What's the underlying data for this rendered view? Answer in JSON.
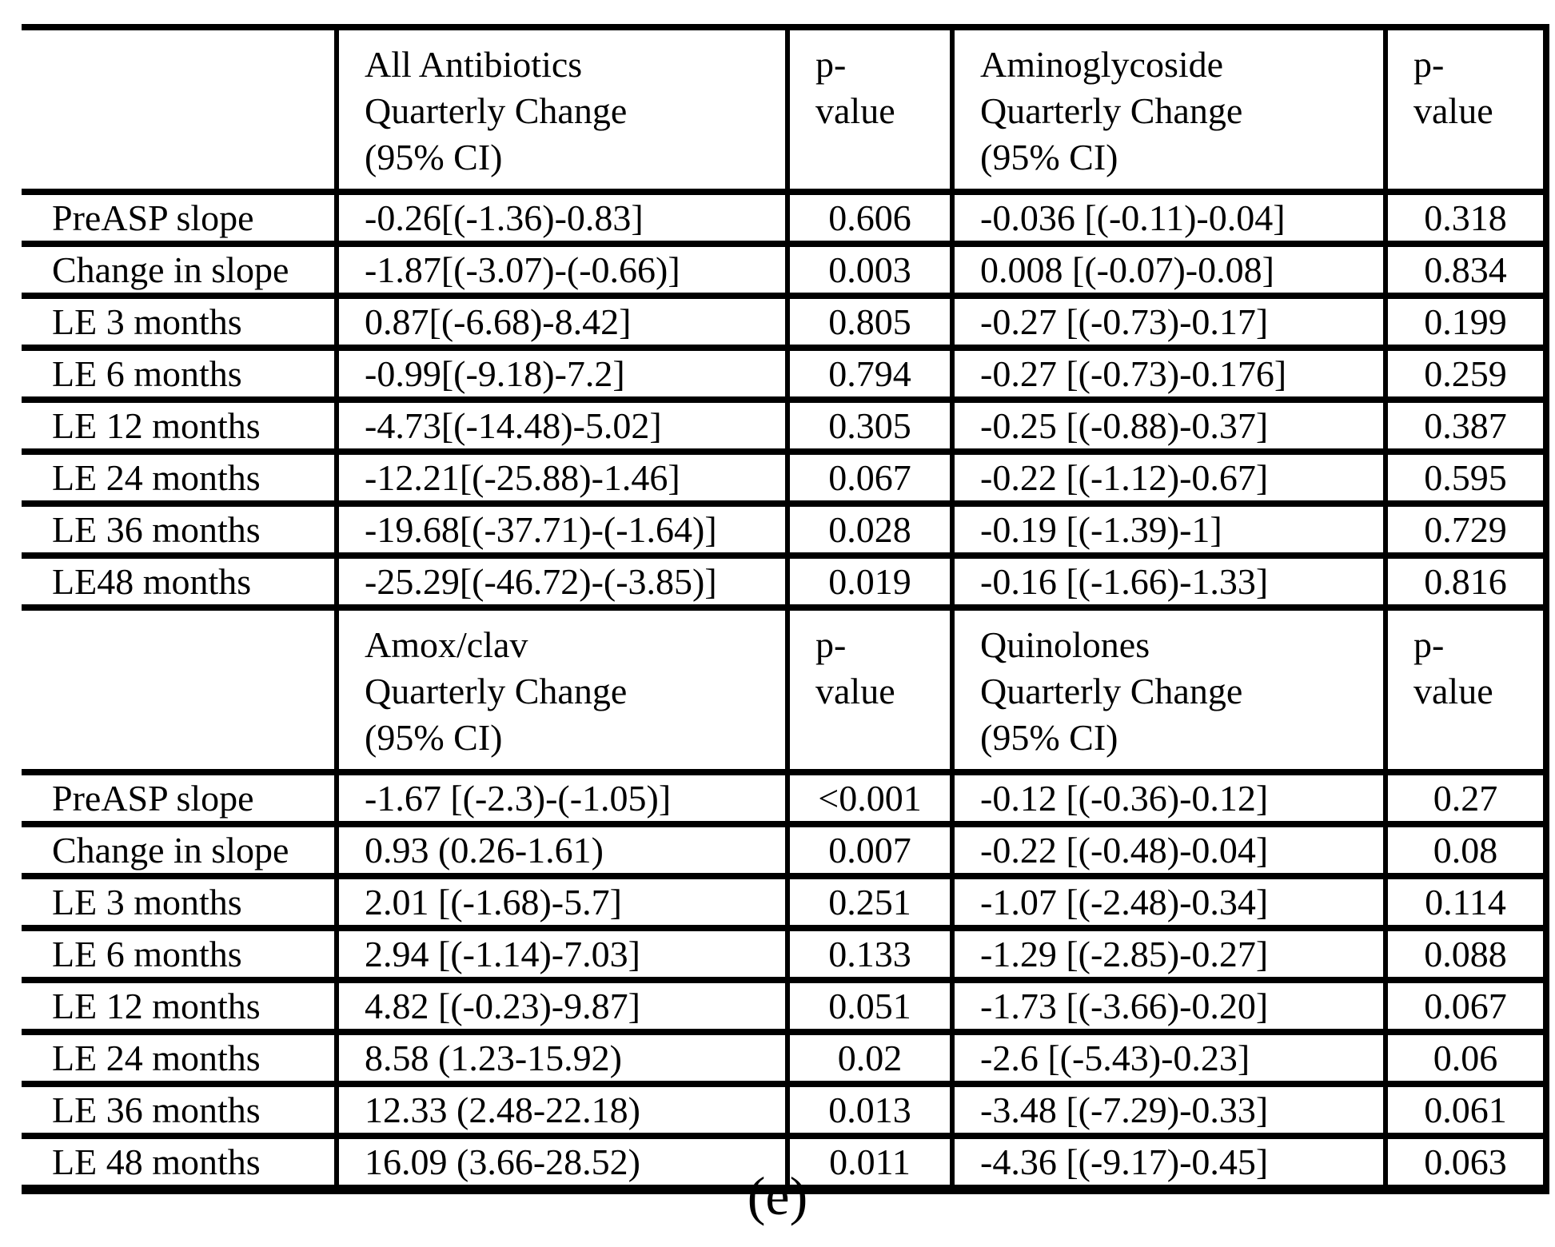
{
  "caption": "(e)",
  "colors": {
    "background": "#ffffff",
    "border": "#000000",
    "text": "#000000"
  },
  "table": {
    "sections": [
      {
        "headers": {
          "label": "",
          "col2": [
            "All Antibiotics",
            "Quarterly Change",
            "(95% CI)"
          ],
          "col3": [
            "p-",
            "value"
          ],
          "col4": [
            "Aminoglycoside",
            "Quarterly Change",
            "(95% CI)"
          ],
          "col5": [
            "p-",
            "value"
          ]
        },
        "rows": [
          [
            "PreASP slope",
            "-0.26[(-1.36)-0.83]",
            "0.606",
            "-0.036 [(-0.11)-0.04]",
            "0.318"
          ],
          [
            "Change in slope",
            "-1.87[(-3.07)-(-0.66)]",
            "0.003",
            "0.008 [(-0.07)-0.08]",
            "0.834"
          ],
          [
            "LE 3 months",
            "0.87[(-6.68)-8.42]",
            "0.805",
            "-0.27 [(-0.73)-0.17]",
            "0.199"
          ],
          [
            "LE 6 months",
            "-0.99[(-9.18)-7.2]",
            "0.794",
            "-0.27 [(-0.73)-0.176]",
            "0.259"
          ],
          [
            "LE 12 months",
            "-4.73[(-14.48)-5.02]",
            "0.305",
            "-0.25 [(-0.88)-0.37]",
            "0.387"
          ],
          [
            "LE 24 months",
            "-12.21[(-25.88)-1.46]",
            "0.067",
            "-0.22 [(-1.12)-0.67]",
            "0.595"
          ],
          [
            "LE 36 months",
            "-19.68[(-37.71)-(-1.64)]",
            "0.028",
            "-0.19 [(-1.39)-1]",
            "0.729"
          ],
          [
            "LE48 months",
            "-25.29[(-46.72)-(-3.85)]",
            "0.019",
            "-0.16 [(-1.66)-1.33]",
            "0.816"
          ]
        ]
      },
      {
        "headers": {
          "label": "",
          "col2": [
            "Amox/clav",
            "Quarterly Change",
            "(95% CI)"
          ],
          "col3": [
            "p-",
            "value"
          ],
          "col4": [
            "Quinolones",
            "Quarterly Change",
            "(95% CI)"
          ],
          "col5": [
            "p-",
            "value"
          ]
        },
        "rows": [
          [
            "PreASP slope",
            "-1.67 [(-2.3)-(-1.05)]",
            "<0.001",
            "-0.12 [(-0.36)-0.12]",
            "0.27"
          ],
          [
            "Change in slope",
            "0.93 (0.26-1.61)",
            "0.007",
            "-0.22 [(-0.48)-0.04]",
            "0.08"
          ],
          [
            "LE 3 months",
            "2.01 [(-1.68)-5.7]",
            "0.251",
            "-1.07 [(-2.48)-0.34]",
            "0.114"
          ],
          [
            "LE 6 months",
            "2.94 [(-1.14)-7.03]",
            "0.133",
            "-1.29 [(-2.85)-0.27]",
            "0.088"
          ],
          [
            "LE 12 months",
            "4.82 [(-0.23)-9.87]",
            "0.051",
            "-1.73 [(-3.66)-0.20]",
            "0.067"
          ],
          [
            "LE 24 months",
            "8.58 (1.23-15.92)",
            "0.02",
            "-2.6 [(-5.43)-0.23]",
            "0.06"
          ],
          [
            "LE 36 months",
            "12.33 (2.48-22.18)",
            "0.013",
            "-3.48 [(-7.29)-0.33]",
            "0.061"
          ],
          [
            "LE 48 months",
            "16.09 (3.66-28.52)",
            "0.011",
            "-4.36 [(-9.17)-0.45]",
            "0.063"
          ]
        ]
      }
    ]
  }
}
